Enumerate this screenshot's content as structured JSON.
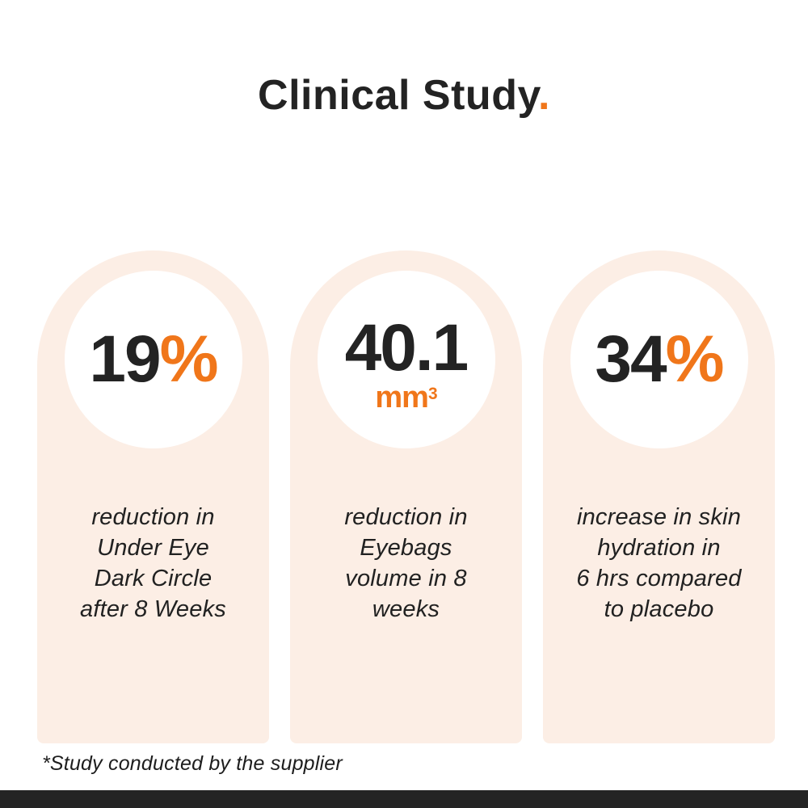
{
  "title": {
    "main": "Clinical Study",
    "dot": "."
  },
  "cards": [
    {
      "value": "19",
      "suffix": "%",
      "desc_lines": [
        "reduction in",
        "Under Eye",
        "Dark Circle",
        "after 8 Weeks"
      ]
    },
    {
      "value": "40.1",
      "unit_base": "mm",
      "unit_sup": "3",
      "desc_lines": [
        "reduction in",
        "Eyebags",
        "volume in 8",
        "weeks"
      ]
    },
    {
      "value": "34",
      "suffix": "%",
      "desc_lines": [
        "increase in skin",
        "hydration in",
        "6 hrs compared",
        "to placebo"
      ]
    }
  ],
  "footnote": "*Study conducted by the supplier",
  "colors": {
    "accent_orange": "#F0761A",
    "card_background": "#FCEEE5",
    "text_dark": "#232323",
    "bottom_bar": "#242424",
    "page_background": "#FFFFFF"
  }
}
